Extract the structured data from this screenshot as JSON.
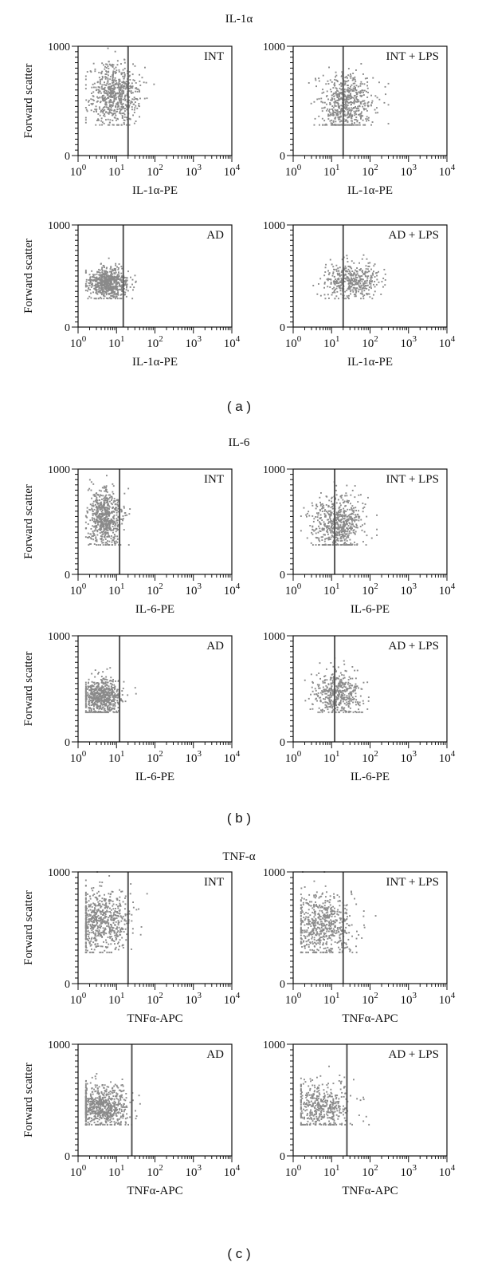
{
  "sections": [
    {
      "title": "IL-1α",
      "label": "( a )",
      "panels": [
        {
          "tag": "INT"
        },
        {
          "tag": "INT + LPS"
        },
        {
          "tag": "AD"
        },
        {
          "tag": "AD + LPS"
        }
      ]
    },
    {
      "title": "IL-6",
      "label": "( b )",
      "panels": [
        {
          "tag": "INT"
        },
        {
          "tag": "INT + LPS"
        },
        {
          "tag": "AD"
        },
        {
          "tag": "AD + LPS"
        }
      ]
    },
    {
      "title": "TNF-α",
      "label": "( c )",
      "panels": [
        {
          "tag": "INT"
        },
        {
          "tag": "INT + LPS"
        },
        {
          "tag": "AD"
        },
        {
          "tag": "AD + LPS"
        }
      ]
    }
  ],
  "colors": {
    "points": "#8a8a8a",
    "axis": "#111111",
    "gate": "#555555"
  },
  "chart_data": [
    {
      "type": "scatter",
      "section": "IL-1α",
      "tag": "INT",
      "xlabel": "IL-1α-PE",
      "ylabel": "Forward scatter",
      "x_scale": "log",
      "xlim": [
        1,
        10000
      ],
      "ylim": [
        0,
        1000
      ],
      "x_ticks": [
        "10^0",
        "10^1",
        "10^2",
        "10^3",
        "10^4"
      ],
      "y_ticks": [
        "0",
        "1000"
      ],
      "gate_x": 20,
      "population": {
        "x_center": 9,
        "x_log_spread": 0.32,
        "y_center": 560,
        "y_spread": 140,
        "n": 650,
        "x_max": 100,
        "y_max": 1000
      }
    },
    {
      "type": "scatter",
      "section": "IL-1α",
      "tag": "INT + LPS",
      "xlabel": "IL-1α-PE",
      "ylabel": "",
      "x_scale": "log",
      "xlim": [
        1,
        10000
      ],
      "ylim": [
        0,
        1000
      ],
      "x_ticks": [
        "10^0",
        "10^1",
        "10^2",
        "10^3",
        "10^4"
      ],
      "y_ticks": [
        "0",
        "1000"
      ],
      "gate_x": 20,
      "population": {
        "x_center": 25,
        "x_log_spread": 0.35,
        "y_center": 470,
        "y_spread": 140,
        "n": 600,
        "x_max": 300,
        "y_max": 1000
      }
    },
    {
      "type": "scatter",
      "section": "IL-1α",
      "tag": "AD",
      "xlabel": "IL-1α-PE",
      "ylabel": "Forward scatter",
      "x_scale": "log",
      "xlim": [
        1,
        10000
      ],
      "ylim": [
        0,
        1000
      ],
      "x_ticks": [
        "10^0",
        "10^1",
        "10^2",
        "10^3",
        "10^4"
      ],
      "y_ticks": [
        "0",
        "1000"
      ],
      "gate_x": 15,
      "population": {
        "x_center": 6,
        "x_log_spread": 0.25,
        "y_center": 430,
        "y_spread": 75,
        "n": 650,
        "x_max": 40,
        "y_max": 900
      }
    },
    {
      "type": "scatter",
      "section": "IL-1α",
      "tag": "AD + LPS",
      "xlabel": "IL-1α-PE",
      "ylabel": "",
      "x_scale": "log",
      "xlim": [
        1,
        10000
      ],
      "ylim": [
        0,
        1000
      ],
      "x_ticks": [
        "10^0",
        "10^1",
        "10^2",
        "10^3",
        "10^4"
      ],
      "y_ticks": [
        "0",
        "1000"
      ],
      "gate_x": 20,
      "population": {
        "x_center": 35,
        "x_log_spread": 0.35,
        "y_center": 460,
        "y_spread": 90,
        "n": 420,
        "x_max": 250,
        "y_max": 900
      }
    },
    {
      "type": "scatter",
      "section": "IL-6",
      "tag": "INT",
      "xlabel": "IL-6-PE",
      "ylabel": "Forward scatter",
      "x_scale": "log",
      "xlim": [
        1,
        10000
      ],
      "ylim": [
        0,
        1000
      ],
      "x_ticks": [
        "10^0",
        "10^1",
        "10^2",
        "10^3",
        "10^4"
      ],
      "y_ticks": [
        "0",
        "1000"
      ],
      "gate_x": 12,
      "population": {
        "x_center": 5,
        "x_log_spread": 0.22,
        "y_center": 540,
        "y_spread": 140,
        "n": 650,
        "x_max": 80,
        "y_max": 1000
      }
    },
    {
      "type": "scatter",
      "section": "IL-6",
      "tag": "INT + LPS",
      "xlabel": "IL-6-PE",
      "ylabel": "",
      "x_scale": "log",
      "xlim": [
        1,
        10000
      ],
      "ylim": [
        0,
        1000
      ],
      "x_ticks": [
        "10^0",
        "10^1",
        "10^2",
        "10^3",
        "10^4"
      ],
      "y_ticks": [
        "0",
        "1000"
      ],
      "gate_x": 12,
      "population": {
        "x_center": 14,
        "x_log_spread": 0.33,
        "y_center": 480,
        "y_spread": 140,
        "n": 620,
        "x_max": 150,
        "y_max": 1000
      }
    },
    {
      "type": "scatter",
      "section": "IL-6",
      "tag": "AD",
      "xlabel": "IL-6-PE",
      "ylabel": "Forward scatter",
      "x_scale": "log",
      "xlim": [
        1,
        10000
      ],
      "ylim": [
        0,
        1000
      ],
      "x_ticks": [
        "10^0",
        "10^1",
        "10^2",
        "10^3",
        "10^4"
      ],
      "y_ticks": [
        "0",
        "1000"
      ],
      "gate_x": 12,
      "population": {
        "x_center": 4,
        "x_log_spread": 0.25,
        "y_center": 420,
        "y_spread": 90,
        "n": 650,
        "x_max": 100,
        "y_max": 900
      }
    },
    {
      "type": "scatter",
      "section": "IL-6",
      "tag": "AD + LPS",
      "xlabel": "IL-6-PE",
      "ylabel": "",
      "x_scale": "log",
      "xlim": [
        1,
        10000
      ],
      "ylim": [
        0,
        1000
      ],
      "x_ticks": [
        "10^0",
        "10^1",
        "10^2",
        "10^3",
        "10^4"
      ],
      "y_ticks": [
        "0",
        "1000"
      ],
      "gate_x": 12,
      "population": {
        "x_center": 14,
        "x_log_spread": 0.32,
        "y_center": 460,
        "y_spread": 110,
        "n": 450,
        "x_max": 120,
        "y_max": 900
      }
    },
    {
      "type": "scatter",
      "section": "TNF-α",
      "tag": "INT",
      "xlabel": "TNFα-APC",
      "ylabel": "Forward scatter",
      "x_scale": "log",
      "xlim": [
        1,
        10000
      ],
      "ylim": [
        0,
        1000
      ],
      "x_ticks": [
        "10^0",
        "10^1",
        "10^2",
        "10^3",
        "10^4"
      ],
      "y_ticks": [
        "0",
        "1000"
      ],
      "gate_x": 20,
      "population": {
        "x_center": 4,
        "x_log_spread": 0.38,
        "y_center": 560,
        "y_spread": 150,
        "n": 650,
        "x_max": 80,
        "y_max": 1000
      }
    },
    {
      "type": "scatter",
      "section": "TNF-α",
      "tag": "INT + LPS",
      "xlabel": "TNFα-APC",
      "ylabel": "",
      "x_scale": "log",
      "xlim": [
        1,
        10000
      ],
      "ylim": [
        0,
        1000
      ],
      "x_ticks": [
        "10^0",
        "10^1",
        "10^2",
        "10^3",
        "10^4"
      ],
      "y_ticks": [
        "0",
        "1000"
      ],
      "gate_x": 20,
      "population": {
        "x_center": 6,
        "x_log_spread": 0.4,
        "y_center": 500,
        "y_spread": 150,
        "n": 600,
        "x_max": 150,
        "y_max": 1000
      }
    },
    {
      "type": "scatter",
      "section": "TNF-α",
      "tag": "AD",
      "xlabel": "TNFα-APC",
      "ylabel": "Forward scatter",
      "x_scale": "log",
      "xlim": [
        1,
        10000
      ],
      "ylim": [
        0,
        1000
      ],
      "x_ticks": [
        "10^0",
        "10^1",
        "10^2",
        "10^3",
        "10^4"
      ],
      "y_ticks": [
        "0",
        "1000"
      ],
      "gate_x": 25,
      "population": {
        "x_center": 4,
        "x_log_spread": 0.38,
        "y_center": 440,
        "y_spread": 95,
        "n": 700,
        "x_max": 90,
        "y_max": 900
      }
    },
    {
      "type": "scatter",
      "section": "TNF-α",
      "tag": "AD + LPS",
      "xlabel": "TNFα-APC",
      "ylabel": "",
      "x_scale": "log",
      "xlim": [
        1,
        10000
      ],
      "ylim": [
        0,
        1000
      ],
      "x_ticks": [
        "10^0",
        "10^1",
        "10^2",
        "10^3",
        "10^4"
      ],
      "y_ticks": [
        "0",
        "1000"
      ],
      "gate_x": 25,
      "population": {
        "x_center": 5,
        "x_log_spread": 0.38,
        "y_center": 440,
        "y_spread": 110,
        "n": 450,
        "x_max": 100,
        "y_max": 900
      }
    }
  ]
}
